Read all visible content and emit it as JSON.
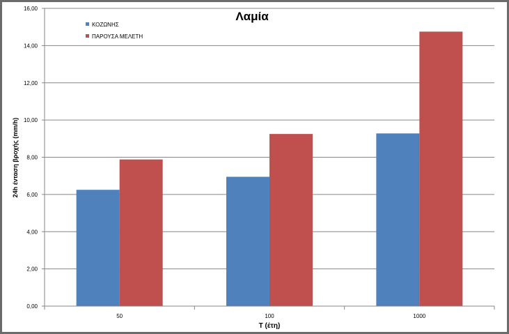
{
  "chart_data": {
    "type": "bar",
    "title": "Λαμία",
    "xlabel": "T (έτη)",
    "ylabel": "24h ένταση βροχής (mm/h)",
    "categories": [
      "50",
      "100",
      "1000"
    ],
    "series": [
      {
        "name": "ΚΟΖΩΝΗΣ",
        "color": "#4f81bd",
        "values": [
          6.25,
          6.95,
          9.28
        ]
      },
      {
        "name": "ΠΑΡΟΥΣΑ ΜΕΛΕΤΗ",
        "color": "#c0504d",
        "values": [
          7.88,
          9.25,
          14.75
        ]
      }
    ],
    "ylim": [
      0,
      16
    ],
    "yticks": [
      "0,00",
      "2,00",
      "4,00",
      "6,00",
      "8,00",
      "10,00",
      "12,00",
      "14,00",
      "16,00"
    ],
    "grid": true,
    "legend_position": "top-left"
  }
}
